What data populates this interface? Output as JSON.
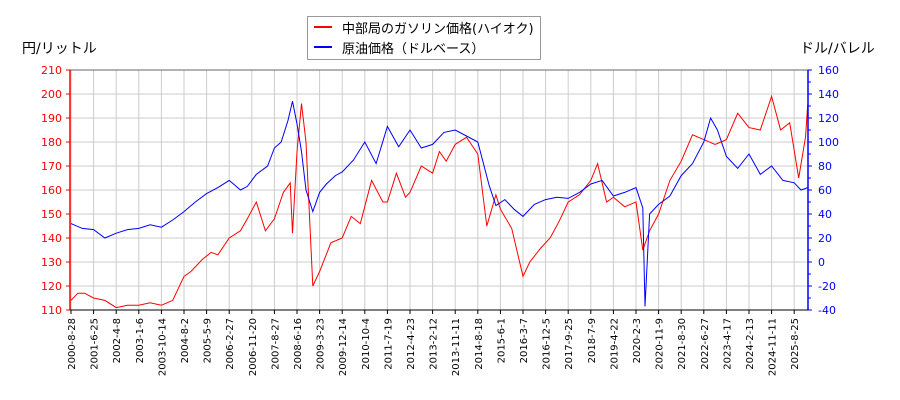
{
  "chart_data": {
    "type": "line",
    "title": "",
    "left_axis_label": "円/リットル",
    "right_axis_label": "ドル/バレル",
    "left_ylim": [
      110,
      210
    ],
    "right_ylim": [
      -40,
      160
    ],
    "left_ticks": [
      110,
      120,
      130,
      140,
      150,
      160,
      170,
      180,
      190,
      200,
      210
    ],
    "right_ticks": [
      -40,
      -20,
      0,
      20,
      40,
      60,
      80,
      100,
      120,
      140,
      160
    ],
    "x_tick_labels": [
      "2000-8-28",
      "2001-6-25",
      "2002-4-8",
      "2003-1-6",
      "2003-10-14",
      "2004-8-2",
      "2005-5-9",
      "2006-2-27",
      "2006-11-20",
      "2007-8-27",
      "2008-6-16",
      "2009-3-23",
      "2009-12-14",
      "2010-10-4",
      "2011-7-19",
      "2012-4-23",
      "2013-2-12",
      "2013-11-11",
      "2014-8-18",
      "2015-6-1",
      "2016-3-7",
      "2016-12-5",
      "2017-9-25",
      "2018-7-9",
      "2019-4-22",
      "2020-2-3",
      "2020-11-9",
      "2021-8-30",
      "2022-6-27",
      "2023-4-17",
      "2024-2-13",
      "2024-11-11",
      "2025-8-25"
    ],
    "grid": true,
    "legend_position": "top-center",
    "series": [
      {
        "name": "中部局のガソリン価格(ハイオク)",
        "axis": "left",
        "color": "#ff0000",
        "x_index": [
          0,
          0.3,
          0.6,
          1,
          1.5,
          2,
          2.5,
          3,
          3.5,
          4,
          4.5,
          5,
          5.3,
          5.8,
          6.2,
          6.5,
          7,
          7.5,
          7.8,
          8.2,
          8.6,
          9,
          9.4,
          9.7,
          9.8,
          10,
          10.2,
          10.4,
          10.7,
          11,
          11.5,
          12,
          12.4,
          12.8,
          13.3,
          13.8,
          14,
          14.4,
          14.8,
          15,
          15.5,
          16,
          16.3,
          16.6,
          17,
          17.5,
          18,
          18.4,
          18.8,
          19,
          19.5,
          20,
          20.3,
          20.8,
          21.2,
          21.6,
          22,
          22.5,
          23,
          23.3,
          23.7,
          24,
          24.5,
          25,
          25.3,
          25.6,
          26,
          26.5,
          27,
          27.5,
          28,
          28.5,
          29,
          29.5,
          30,
          30.5,
          31,
          31.4,
          31.8,
          32.2,
          32.5,
          32.6
        ],
        "values": [
          114,
          117,
          117,
          115,
          114,
          111,
          112,
          112,
          113,
          112,
          114,
          124,
          126,
          131,
          134,
          133,
          140,
          143,
          148,
          155,
          143,
          148,
          159,
          163,
          142,
          176,
          196,
          180,
          120,
          126,
          138,
          140,
          149,
          146,
          164,
          155,
          155,
          167,
          157,
          159,
          170,
          167,
          176,
          172,
          179,
          182,
          175,
          145,
          158,
          152,
          144,
          124,
          130,
          136,
          140,
          147,
          155,
          158,
          164,
          171,
          155,
          157,
          153,
          155,
          135,
          143,
          150,
          164,
          172,
          183,
          181,
          179,
          181,
          192,
          186,
          185,
          199,
          185,
          188,
          165,
          182,
          196
        ]
      },
      {
        "name": "原油価格（ドルベース）",
        "axis": "right",
        "color": "#0000ff",
        "x_index": [
          0,
          0.5,
          1,
          1.5,
          2,
          2.5,
          3,
          3.5,
          4,
          4.5,
          5,
          5.5,
          6,
          6.5,
          7,
          7.5,
          7.8,
          8.2,
          8.7,
          9,
          9.3,
          9.6,
          9.8,
          10,
          10.2,
          10.4,
          10.7,
          11,
          11.3,
          11.7,
          12,
          12.5,
          13,
          13.5,
          14,
          14.5,
          15,
          15.5,
          16,
          16.5,
          17,
          17.5,
          18,
          18.5,
          18.8,
          19.2,
          19.6,
          20,
          20.5,
          21,
          21.5,
          22,
          22.5,
          23,
          23.5,
          24,
          24.5,
          25,
          25.3,
          25.4,
          25.6,
          26,
          26.5,
          27,
          27.5,
          28,
          28.3,
          28.6,
          29,
          29.5,
          30,
          30.5,
          31,
          31.5,
          32,
          32.3,
          32.6
        ],
        "values": [
          32,
          28,
          27,
          20,
          24,
          27,
          28,
          31,
          29,
          35,
          42,
          50,
          57,
          62,
          68,
          60,
          63,
          73,
          80,
          95,
          100,
          118,
          134,
          115,
          92,
          60,
          42,
          58,
          65,
          72,
          75,
          85,
          100,
          82,
          113,
          96,
          110,
          95,
          98,
          108,
          110,
          105,
          100,
          64,
          47,
          52,
          44,
          38,
          48,
          52,
          54,
          53,
          58,
          65,
          68,
          55,
          58,
          62,
          45,
          -37,
          40,
          48,
          55,
          72,
          82,
          100,
          120,
          110,
          88,
          78,
          90,
          73,
          80,
          68,
          66,
          60,
          62
        ]
      }
    ]
  },
  "legend": {
    "items": [
      {
        "label": "中部局のガソリン価格(ハイオク)",
        "color": "#ff0000"
      },
      {
        "label": "原油価格（ドルベース）",
        "color": "#0000ff"
      }
    ]
  },
  "axes": {
    "left_title": "円/リットル",
    "right_title": "ドル/バレル",
    "left_color": "#ff0000",
    "right_color": "#0000ff"
  }
}
